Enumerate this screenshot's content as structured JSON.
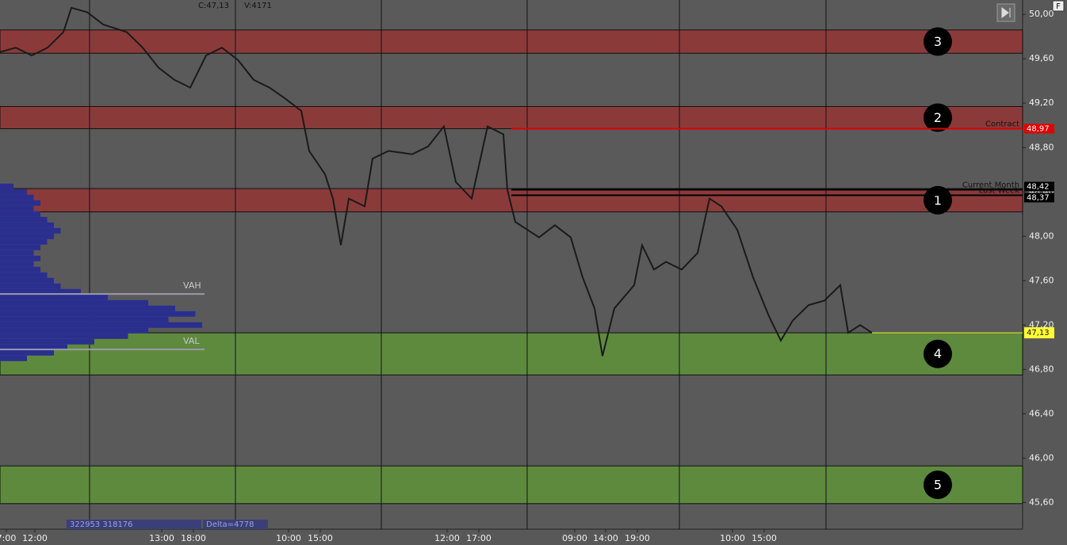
{
  "chart_data": {
    "type": "line",
    "header": {
      "close": "C:47,13",
      "volume": "V:4171"
    },
    "footer": {
      "volumes": "322953 318176",
      "delta": "Delta=4778"
    },
    "xlim": [
      0,
      129
    ],
    "ylim": [
      45.36,
      50.13
    ],
    "yticks": [
      {
        "value": 50,
        "label": "50,00"
      },
      {
        "value": 49.6,
        "label": "49,60"
      },
      {
        "value": 49.2,
        "label": "49,20"
      },
      {
        "value": 48.8,
        "label": "48,80"
      },
      {
        "value": 48.4,
        "label": "48,40"
      },
      {
        "value": 48,
        "label": "48,00"
      },
      {
        "value": 47.6,
        "label": "47,60"
      },
      {
        "value": 47.2,
        "label": "47,20"
      },
      {
        "value": 46.8,
        "label": "46,80"
      },
      {
        "value": 46.4,
        "label": "46,40"
      },
      {
        "value": 46,
        "label": "46,00"
      },
      {
        "value": 45.6,
        "label": "45,60"
      }
    ],
    "xticks": [
      {
        "value": 0.8,
        "label": "7:00"
      },
      {
        "value": 4.4,
        "label": "12:00"
      },
      {
        "value": 20.4,
        "label": "13:00"
      },
      {
        "value": 24.4,
        "label": "18:00"
      },
      {
        "value": 36.4,
        "label": "10:00"
      },
      {
        "value": 40.4,
        "label": "15:00"
      },
      {
        "value": 56.4,
        "label": "12:00"
      },
      {
        "value": 60.4,
        "label": "17:00"
      },
      {
        "value": 72.5,
        "label": "09:00"
      },
      {
        "value": 76.4,
        "label": "14:00"
      },
      {
        "value": 80.4,
        "label": "19:00"
      },
      {
        "value": 92.4,
        "label": "10:00"
      },
      {
        "value": 96.4,
        "label": "15:00"
      }
    ],
    "separators": [
      11.3,
      29.7,
      48.1,
      66.5,
      85.7,
      104.2
    ],
    "series": [
      {
        "name": "Price",
        "color": "#1a1a1a",
        "x": [
          0,
          2,
          4,
          6,
          8,
          9,
          11,
          13,
          16,
          18,
          20,
          22,
          24,
          26,
          28,
          30,
          32,
          34,
          36,
          38,
          39,
          41,
          42,
          43,
          44,
          46,
          47,
          49,
          52,
          54,
          56,
          57.5,
          59.5,
          61.5,
          63.5,
          64,
          65,
          68,
          70,
          72,
          73.5,
          75,
          76,
          77.5,
          80,
          81,
          82.5,
          84,
          86,
          88,
          89.5,
          91,
          93,
          95,
          97,
          98.5,
          100,
          102,
          104,
          106,
          107,
          108.5,
          110
        ],
        "values": [
          49.66,
          49.7,
          49.63,
          49.7,
          49.84,
          50.06,
          50.02,
          49.91,
          49.84,
          49.7,
          49.52,
          49.41,
          49.34,
          49.63,
          49.7,
          49.59,
          49.41,
          49.34,
          49.24,
          49.13,
          48.77,
          48.56,
          48.34,
          47.92,
          48.34,
          48.27,
          48.7,
          48.77,
          48.74,
          48.81,
          48.99,
          48.49,
          48.34,
          48.99,
          48.92,
          48.42,
          48.13,
          47.99,
          48.1,
          47.99,
          47.63,
          47.35,
          46.92,
          47.35,
          47.56,
          47.92,
          47.7,
          47.77,
          47.7,
          47.85,
          48.34,
          48.27,
          48.06,
          47.63,
          47.28,
          47.06,
          47.24,
          47.38,
          47.42,
          47.56,
          47.13,
          47.2,
          47.13
        ]
      }
    ],
    "profile": {
      "prices": [
        48.45,
        48.4,
        48.35,
        48.3,
        48.25,
        48.2,
        48.15,
        48.1,
        48.05,
        48.0,
        47.95,
        47.9,
        47.85,
        47.8,
        47.75,
        47.7,
        47.65,
        47.6,
        47.55,
        47.5,
        47.45,
        47.4,
        47.35,
        47.3,
        47.25,
        47.2,
        47.15,
        47.1,
        47.05,
        47.0,
        46.95,
        46.9
      ],
      "volumes": [
        2,
        4,
        5,
        6,
        5,
        6,
        7,
        8,
        9,
        8,
        7,
        6,
        5,
        6,
        5,
        6,
        7,
        8,
        9,
        12,
        16,
        22,
        26,
        29,
        25,
        30,
        22,
        19,
        14,
        10,
        8,
        4
      ],
      "color": "#2a2f8f"
    },
    "value_area": [
      {
        "label": "VAH",
        "value": 47.48
      },
      {
        "label": "VAL",
        "value": 46.98
      }
    ],
    "zones": [
      {
        "label": "3",
        "top": 49.86,
        "bottom": 49.65,
        "color": "#8b3a3a"
      },
      {
        "label": "2",
        "top": 49.17,
        "bottom": 48.97,
        "color": "#8b3a3a"
      },
      {
        "label": "1",
        "top": 48.43,
        "bottom": 48.22,
        "color": "#8b3a3a"
      },
      {
        "label": "4",
        "top": 47.13,
        "bottom": 46.75,
        "color": "#5e8a3e"
      },
      {
        "label": "5",
        "top": 45.93,
        "bottom": 45.59,
        "color": "#5e8a3e"
      }
    ],
    "levels": [
      {
        "name": "Contract",
        "value": 48.97,
        "value_label": "48,97",
        "color": "#e00000",
        "start": 64.5
      },
      {
        "name": "Current Month",
        "value": 48.42,
        "value_label": "48,42",
        "color": "#000000",
        "start": 64.5
      },
      {
        "name": "Last Week",
        "value": 48.37,
        "value_label": "48,37",
        "color": "#000000",
        "start": 64.5
      }
    ],
    "last_price": {
      "value": 47.13,
      "value_label": "47,13",
      "color": "#ffff33"
    }
  }
}
